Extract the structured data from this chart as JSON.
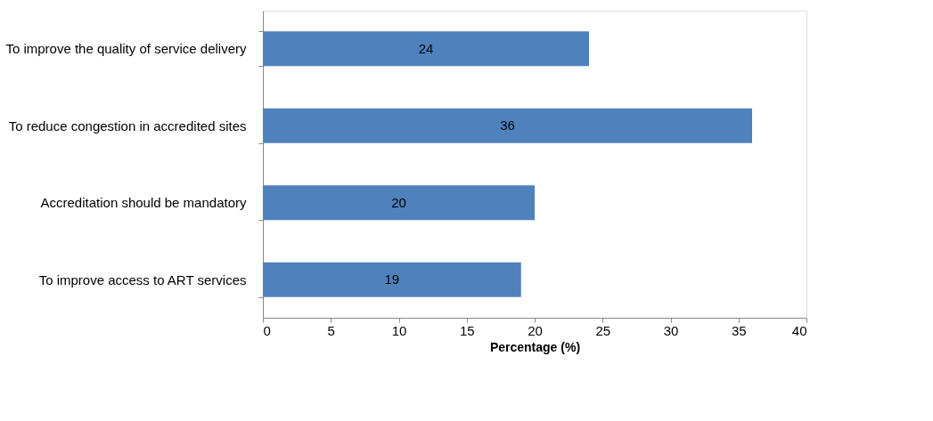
{
  "chart_data": {
    "type": "bar",
    "orientation": "horizontal",
    "xlabel": "Percentage (%)",
    "categories": [
      "To improve the quality of service delivery",
      "To reduce congestion in accredited sites",
      "Accreditation should be mandatory",
      "To improve access to ART services"
    ],
    "values": [
      24,
      36,
      20,
      19
    ],
    "color": "#4f81bd",
    "xlim": [
      0,
      40
    ],
    "xticks": [
      0,
      5,
      10,
      15,
      20,
      25,
      30,
      35,
      40
    ],
    "data_labels": true,
    "grid": false
  }
}
